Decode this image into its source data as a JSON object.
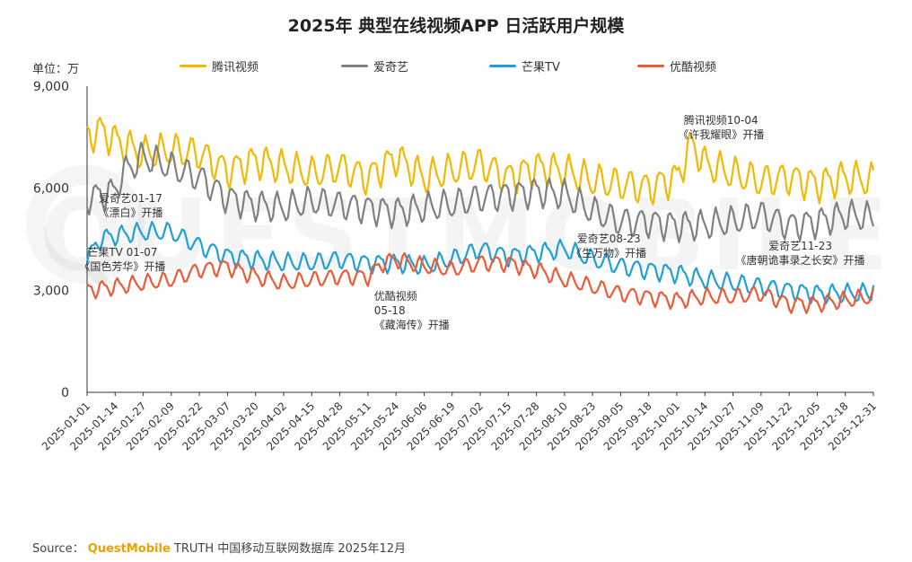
{
  "title": "2025年 典型在线视频APP 日活跃用户规模",
  "unit_label": "单位：万",
  "source": {
    "prefix": "Source：",
    "brand": "QuestMobile",
    "rest": "TRUTH 中国移动互联网数据库 2025年12月"
  },
  "watermark": "QUESTMOBILE",
  "chart_data": {
    "type": "line",
    "title": "2025年 典型在线视频APP 日活跃用户规模",
    "ylabel": "单位：万",
    "ylim": [
      0,
      9000
    ],
    "yticks": [
      0,
      3000,
      6000,
      9000
    ],
    "ytick_labels": [
      "0",
      "3,000",
      "6,000",
      "9,000"
    ],
    "x_start": "2025-01-01",
    "x_end": "2025-12-31",
    "xticks": [
      "2025-01-01",
      "2025-01-14",
      "2025-01-27",
      "2025-02-09",
      "2025-02-22",
      "2025-03-07",
      "2025-03-20",
      "2025-04-02",
      "2025-04-15",
      "2025-04-28",
      "2025-05-11",
      "2025-05-24",
      "2025-06-06",
      "2025-06-19",
      "2025-07-02",
      "2025-07-15",
      "2025-07-28",
      "2025-08-10",
      "2025-08-23",
      "2025-09-05",
      "2025-09-18",
      "2025-10-01",
      "2025-10-14",
      "2025-10-27",
      "2025-11-09",
      "2025-11-22",
      "2025-12-05",
      "2025-12-18",
      "2025-12-31"
    ],
    "legend_position": "top",
    "grid": false,
    "series": [
      {
        "name": "腾讯视频",
        "color": "#f5b800",
        "x": [
          "2025-01-01",
          "2025-01-07",
          "2025-01-14",
          "2025-01-27",
          "2025-02-09",
          "2025-02-22",
          "2025-03-07",
          "2025-03-20",
          "2025-04-02",
          "2025-04-15",
          "2025-04-28",
          "2025-05-11",
          "2025-05-24",
          "2025-06-06",
          "2025-06-19",
          "2025-07-02",
          "2025-07-15",
          "2025-07-28",
          "2025-08-10",
          "2025-08-23",
          "2025-09-05",
          "2025-09-18",
          "2025-10-01",
          "2025-10-08",
          "2025-10-14",
          "2025-10-27",
          "2025-11-09",
          "2025-11-22",
          "2025-12-05",
          "2025-12-18",
          "2025-12-31"
        ],
        "values": [
          7500,
          7700,
          7400,
          7000,
          7100,
          7000,
          6500,
          6800,
          6600,
          6400,
          6600,
          6300,
          6900,
          6300,
          6500,
          6700,
          6300,
          6600,
          6500,
          6200,
          6100,
          6000,
          6300,
          7300,
          6700,
          6400,
          6200,
          6300,
          6100,
          6300,
          6200
        ],
        "amplitude": 450
      },
      {
        "name": "爱奇艺",
        "color": "#808080",
        "x": [
          "2025-01-01",
          "2025-01-14",
          "2025-01-17",
          "2025-01-27",
          "2025-02-09",
          "2025-02-22",
          "2025-03-07",
          "2025-03-20",
          "2025-04-02",
          "2025-04-15",
          "2025-04-28",
          "2025-05-11",
          "2025-05-24",
          "2025-06-06",
          "2025-06-19",
          "2025-07-02",
          "2025-07-15",
          "2025-07-28",
          "2025-08-10",
          "2025-08-23",
          "2025-09-05",
          "2025-09-18",
          "2025-10-01",
          "2025-10-14",
          "2025-10-27",
          "2025-11-09",
          "2025-11-22",
          "2025-12-05",
          "2025-12-18",
          "2025-12-31"
        ],
        "values": [
          5700,
          5900,
          6400,
          6900,
          6600,
          6300,
          5700,
          5500,
          5400,
          5600,
          5500,
          5400,
          5300,
          5400,
          5500,
          5700,
          5800,
          5900,
          5800,
          5300,
          5000,
          5000,
          4900,
          4900,
          5000,
          5200,
          4900,
          5000,
          5200,
          5100
        ],
        "amplitude": 400
      },
      {
        "name": "芒果TV",
        "color": "#1ea0d9",
        "x": [
          "2025-01-01",
          "2025-01-07",
          "2025-01-14",
          "2025-01-27",
          "2025-02-09",
          "2025-02-22",
          "2025-03-07",
          "2025-03-20",
          "2025-04-02",
          "2025-04-15",
          "2025-04-28",
          "2025-05-11",
          "2025-05-24",
          "2025-06-06",
          "2025-06-19",
          "2025-07-02",
          "2025-07-15",
          "2025-07-28",
          "2025-08-10",
          "2025-08-23",
          "2025-09-05",
          "2025-09-18",
          "2025-10-01",
          "2025-10-14",
          "2025-10-27",
          "2025-11-09",
          "2025-11-22",
          "2025-12-05",
          "2025-12-18",
          "2025-12-30",
          "2025-12-31"
        ],
        "values": [
          3900,
          4500,
          4600,
          4700,
          4700,
          4300,
          4000,
          3900,
          3800,
          3800,
          3900,
          3800,
          3800,
          3700,
          3900,
          4200,
          4000,
          4100,
          4200,
          3900,
          3700,
          3600,
          3500,
          3300,
          3200,
          3100,
          3000,
          2900,
          2900,
          2900,
          3300
        ],
        "amplitude": 250
      },
      {
        "name": "优酷视频",
        "color": "#ef5a36",
        "x": [
          "2025-01-01",
          "2025-01-14",
          "2025-01-27",
          "2025-02-09",
          "2025-02-22",
          "2025-03-07",
          "2025-03-20",
          "2025-04-02",
          "2025-04-15",
          "2025-04-28",
          "2025-05-11",
          "2025-05-18",
          "2025-05-24",
          "2025-06-06",
          "2025-06-19",
          "2025-07-02",
          "2025-07-15",
          "2025-07-28",
          "2025-08-10",
          "2025-08-23",
          "2025-09-05",
          "2025-09-18",
          "2025-10-01",
          "2025-10-14",
          "2025-10-27",
          "2025-11-09",
          "2025-11-22",
          "2025-12-05",
          "2025-12-18",
          "2025-12-31"
        ],
        "values": [
          3000,
          3100,
          3200,
          3300,
          3600,
          3700,
          3400,
          3200,
          3300,
          3400,
          3400,
          3800,
          3900,
          3700,
          3600,
          3800,
          3800,
          3600,
          3300,
          3100,
          2900,
          2800,
          2700,
          2800,
          2800,
          2900,
          2600,
          2600,
          2700,
          2800
        ],
        "amplitude": 220
      }
    ],
    "annotations": [
      {
        "lines": [
          "腾讯视频10-04",
          "《许我耀眼》开播"
        ],
        "x": "2025-10-04"
      },
      {
        "lines": [
          "爱奇艺01-17",
          "《漂白》开播"
        ],
        "x": "2025-01-17"
      },
      {
        "lines": [
          "芒果TV 01-07",
          "《国色芳华》开播"
        ],
        "x": "2025-01-07"
      },
      {
        "lines": [
          "优酷视频",
          "05-18",
          "《藏海传》开播"
        ],
        "x": "2025-05-18"
      },
      {
        "lines": [
          "爱奇艺08-23",
          "《生万物》开播"
        ],
        "x": "2025-08-23"
      },
      {
        "lines": [
          "爱奇艺11-23",
          "《唐朝诡事录之长安》开播"
        ],
        "x": "2025-11-23"
      }
    ]
  }
}
